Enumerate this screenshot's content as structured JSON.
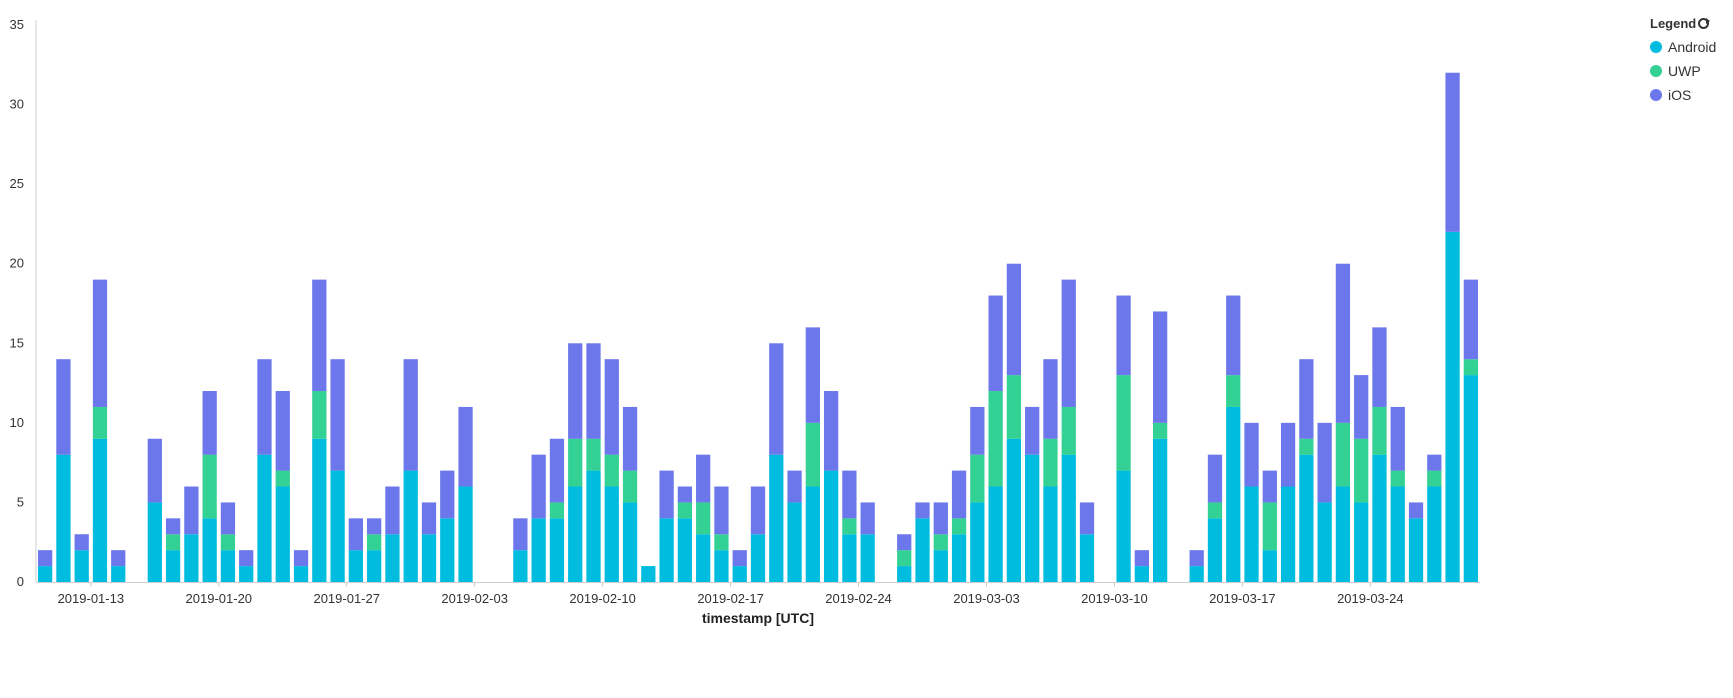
{
  "legend": {
    "title": "Legend",
    "items": [
      {
        "label": "Android",
        "color": "#00bcdf"
      },
      {
        "label": "UWP",
        "color": "#33d193"
      },
      {
        "label": "iOS",
        "color": "#6b77ea"
      }
    ]
  },
  "chart_data": {
    "type": "bar",
    "stacked": true,
    "xlabel": "timestamp [UTC]",
    "ylabel": "",
    "ylim": [
      0,
      35
    ],
    "yticks": [
      0,
      5,
      10,
      15,
      20,
      25,
      30,
      35
    ],
    "x_start": "2019-01-10",
    "x_tick_labels": [
      "2019-01-13",
      "2019-01-20",
      "2019-01-27",
      "2019-02-03",
      "2019-02-10",
      "2019-02-17",
      "2019-02-24",
      "2019-03-03",
      "2019-03-10",
      "2019-03-17",
      "2019-03-24"
    ],
    "grid": false,
    "legend_position": "top-right",
    "series": [
      {
        "name": "Android",
        "color": "#00bcdf",
        "values": [
          1,
          8,
          2,
          9,
          1,
          0,
          5,
          2,
          3,
          4,
          2,
          1,
          8,
          6,
          1,
          9,
          7,
          2,
          2,
          3,
          7,
          3,
          4,
          6,
          0,
          0,
          2,
          4,
          4,
          6,
          7,
          6,
          5,
          1,
          4,
          4,
          3,
          2,
          1,
          3,
          8,
          5,
          6,
          7,
          3,
          3,
          0,
          1,
          4,
          2,
          3,
          5,
          6,
          9,
          8,
          6,
          8,
          3,
          0,
          7,
          1,
          9,
          0,
          1,
          4,
          11,
          6,
          2,
          6,
          8,
          5,
          6,
          5,
          8,
          6,
          4,
          6,
          22,
          13
        ]
      },
      {
        "name": "UWP",
        "color": "#33d193",
        "values": [
          0,
          0,
          0,
          2,
          0,
          0,
          0,
          1,
          0,
          4,
          1,
          0,
          0,
          1,
          0,
          3,
          0,
          0,
          1,
          0,
          0,
          0,
          0,
          0,
          0,
          0,
          0,
          0,
          1,
          3,
          2,
          2,
          2,
          0,
          0,
          1,
          2,
          1,
          0,
          0,
          0,
          0,
          4,
          0,
          1,
          0,
          0,
          1,
          0,
          1,
          1,
          3,
          6,
          4,
          0,
          3,
          3,
          0,
          0,
          6,
          0,
          1,
          0,
          0,
          1,
          2,
          0,
          3,
          0,
          1,
          0,
          4,
          4,
          3,
          1,
          0,
          1,
          0,
          1
        ]
      },
      {
        "name": "iOS",
        "color": "#6b77ea",
        "values": [
          1,
          6,
          1,
          8,
          1,
          0,
          4,
          1,
          3,
          4,
          2,
          1,
          6,
          5,
          1,
          7,
          7,
          2,
          1,
          3,
          7,
          2,
          3,
          5,
          0,
          0,
          2,
          4,
          4,
          6,
          6,
          6,
          4,
          0,
          3,
          1,
          3,
          3,
          1,
          3,
          7,
          2,
          6,
          5,
          3,
          2,
          0,
          1,
          1,
          2,
          3,
          3,
          6,
          7,
          3,
          5,
          8,
          2,
          0,
          5,
          1,
          7,
          0,
          1,
          3,
          5,
          4,
          2,
          4,
          5,
          5,
          10,
          4,
          5,
          4,
          1,
          1,
          10,
          5
        ]
      }
    ]
  }
}
